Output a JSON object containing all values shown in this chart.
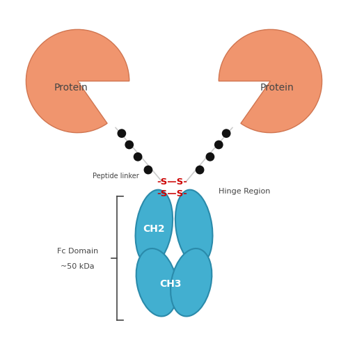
{
  "bg_color": "#ffffff",
  "protein_color": "#f0956e",
  "protein_edge_color": "#d07550",
  "blue_color": "#42afd0",
  "blue_edge_color": "#2a8aaa",
  "dot_color": "#111111",
  "hinge_color": "#cc0000",
  "linker_line_color": "#cccccc",
  "text_color": "#444444",
  "label_protein": "Protein",
  "label_peptide": "Peptide linker",
  "label_hinge": "Hinge Region",
  "label_ch2": "CH2",
  "label_ch3": "CH3",
  "label_fc1": "Fc Domain",
  "label_fc2": "~50 kDa",
  "hinge_text1": "-S—S-",
  "hinge_text2": "-S—S-"
}
